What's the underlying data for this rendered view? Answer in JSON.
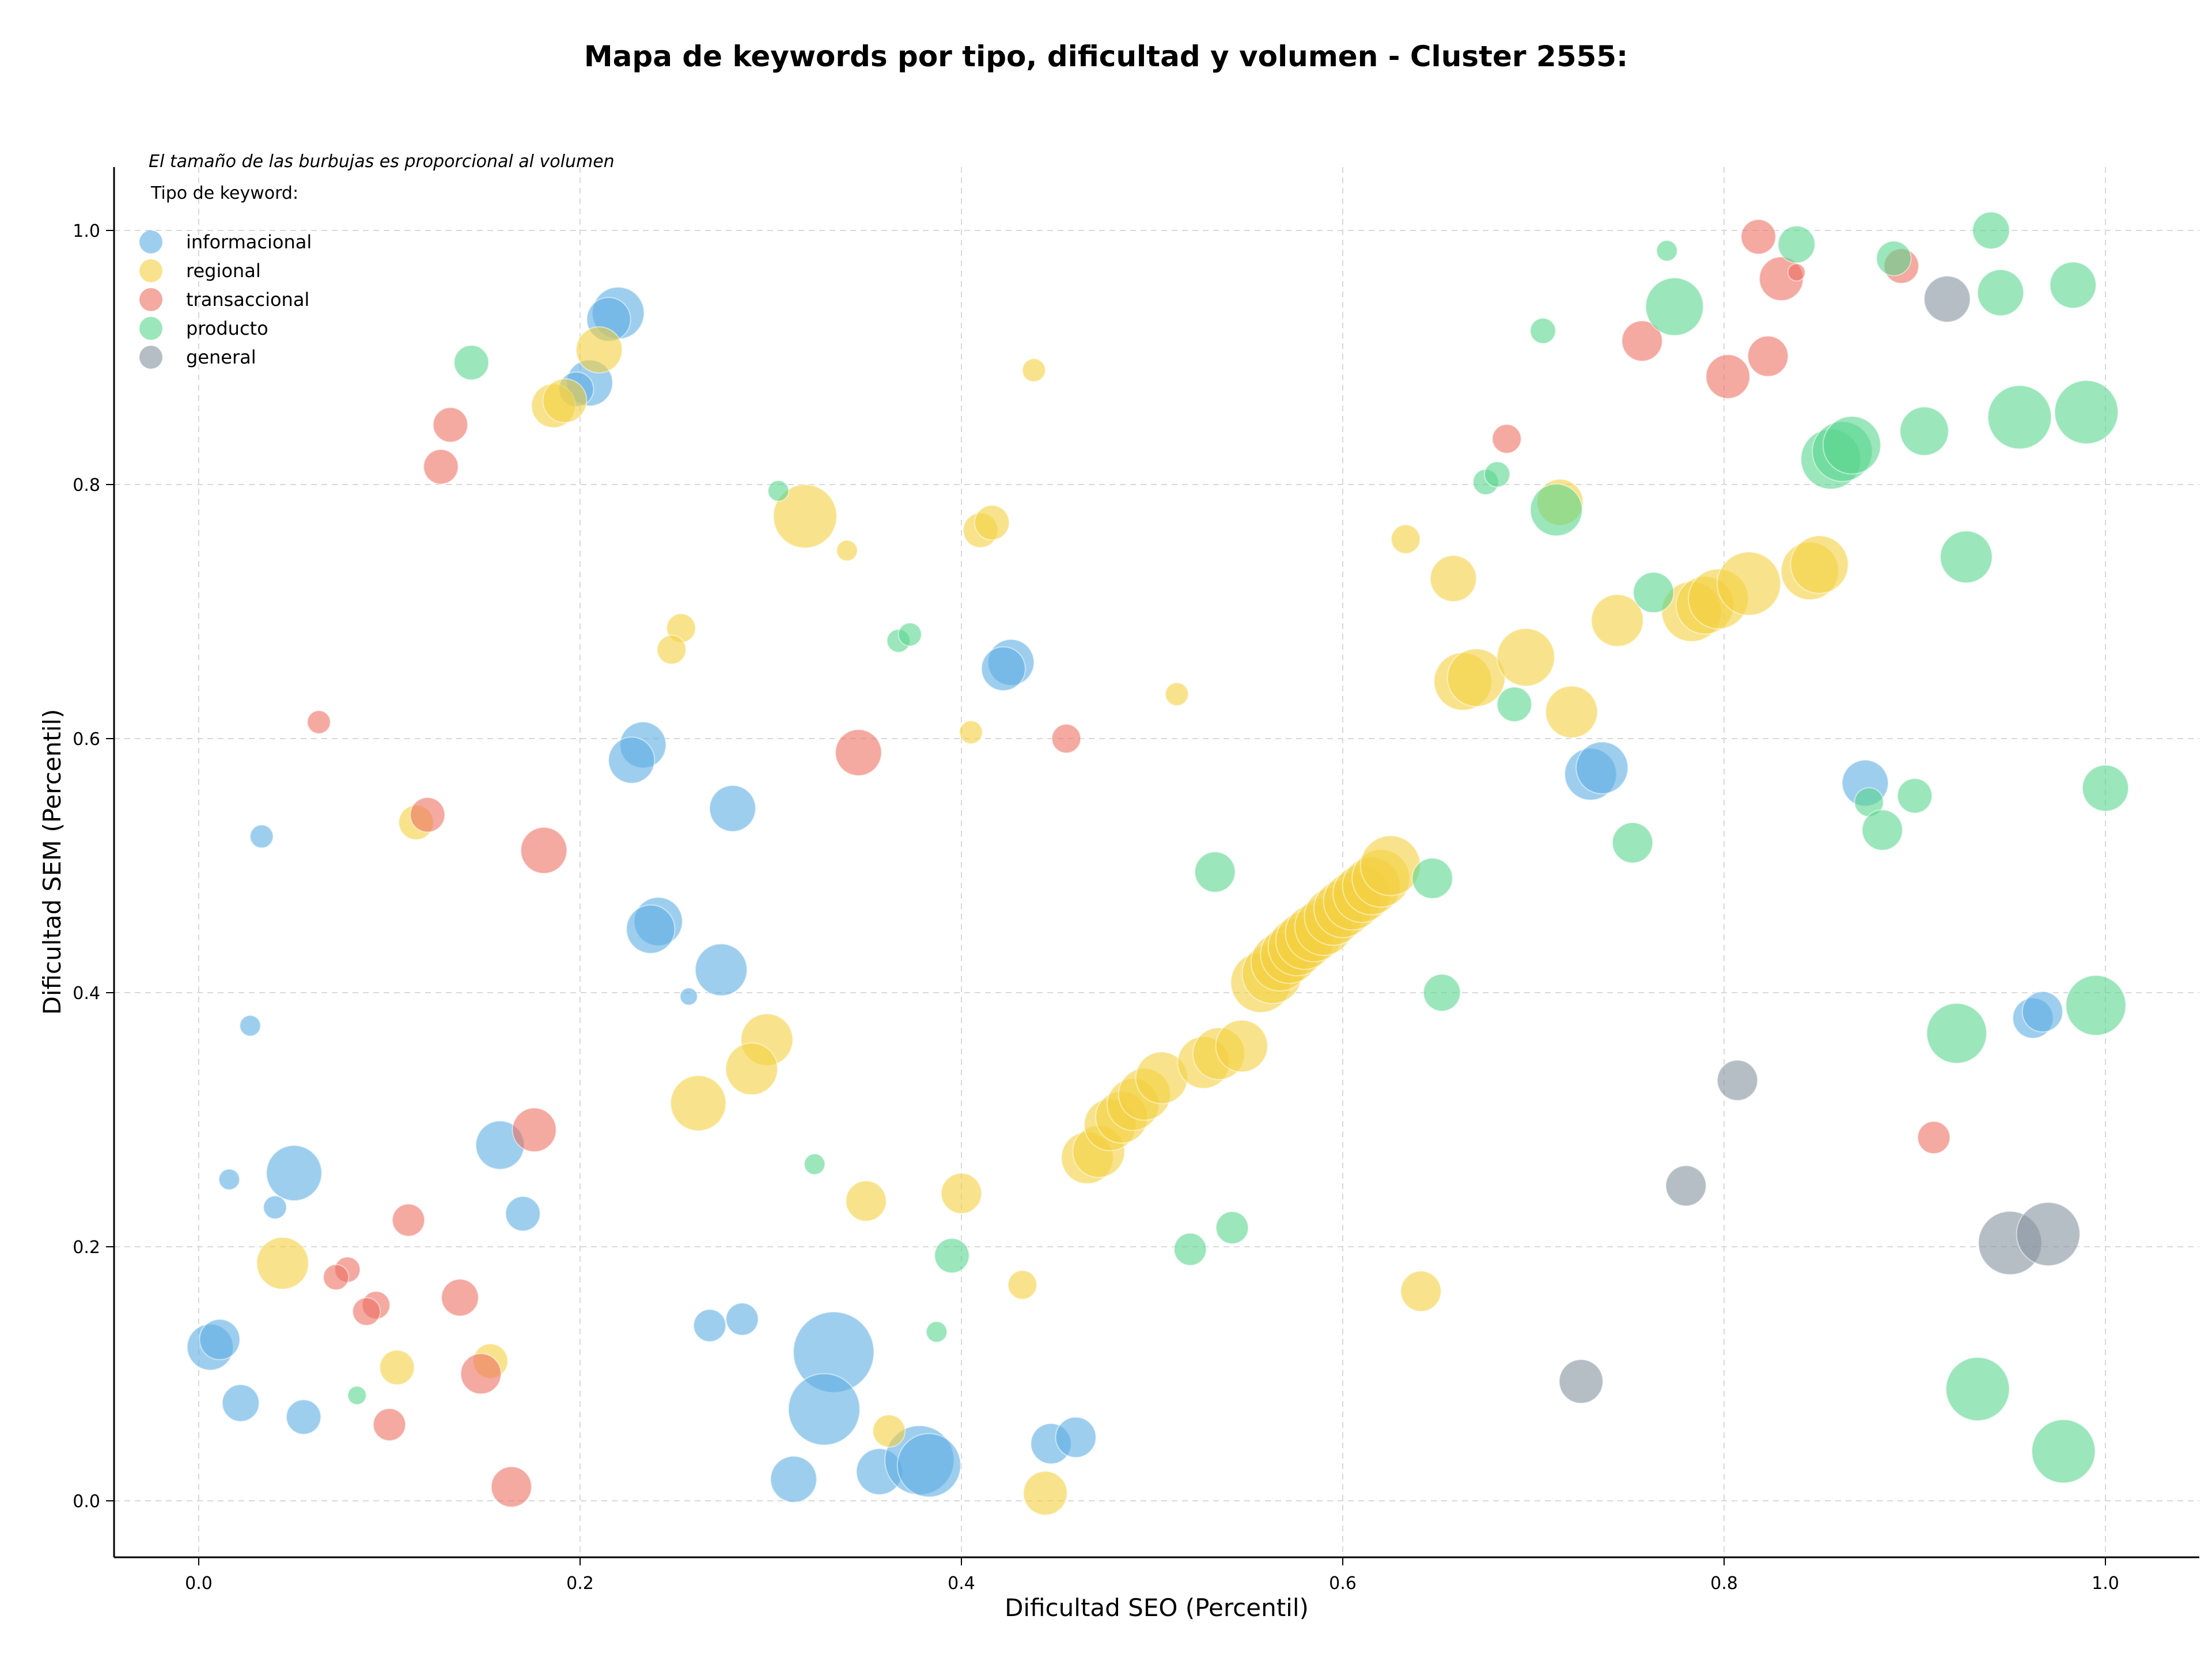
{
  "chart_data": {
    "type": "scatter",
    "title": "Mapa de keywords por tipo, dificultad y volumen - Cluster 2555:",
    "subtitle": "El tamaño de las burbujas es proporcional al volumen",
    "xlabel": "Dificultad SEO (Percentil)",
    "ylabel": "Dificultad SEM (Percentil)",
    "xlim": [
      -0.045,
      1.05
    ],
    "ylim": [
      -0.045,
      1.05
    ],
    "xticks": [
      "0.0",
      "0.2",
      "0.4",
      "0.6",
      "0.8",
      "1.0"
    ],
    "yticks": [
      "0.0",
      "0.2",
      "0.4",
      "0.6",
      "0.8",
      "1.0"
    ],
    "grid": true,
    "legend_title": "Tipo de keyword:",
    "legend_position": "top-left",
    "series": [
      {
        "name": "informacional",
        "color": "#5DADE2",
        "points": [
          [
            0.22,
            0.935,
            45
          ],
          [
            0.205,
            0.88,
            40
          ],
          [
            0.198,
            0.875,
            30
          ],
          [
            0.215,
            0.93,
            38
          ],
          [
            0.426,
            0.66,
            40
          ],
          [
            0.422,
            0.655,
            38
          ],
          [
            0.233,
            0.595,
            40
          ],
          [
            0.227,
            0.583,
            40
          ],
          [
            0.28,
            0.545,
            40
          ],
          [
            0.033,
            0.523,
            20
          ],
          [
            0.241,
            0.456,
            42
          ],
          [
            0.237,
            0.45,
            42
          ],
          [
            0.274,
            0.418,
            45
          ],
          [
            0.257,
            0.397,
            15
          ],
          [
            0.027,
            0.374,
            18
          ],
          [
            0.158,
            0.28,
            42
          ],
          [
            0.05,
            0.258,
            48
          ],
          [
            0.016,
            0.253,
            18
          ],
          [
            0.04,
            0.231,
            20
          ],
          [
            0.17,
            0.226,
            30
          ],
          [
            0.006,
            0.121,
            40
          ],
          [
            0.011,
            0.127,
            35
          ],
          [
            0.022,
            0.077,
            32
          ],
          [
            0.055,
            0.066,
            30
          ],
          [
            0.268,
            0.138,
            28
          ],
          [
            0.285,
            0.143,
            28
          ],
          [
            0.333,
            0.117,
            70
          ],
          [
            0.328,
            0.072,
            62
          ],
          [
            0.312,
            0.017,
            40
          ],
          [
            0.357,
            0.023,
            40
          ],
          [
            0.378,
            0.032,
            60
          ],
          [
            0.383,
            0.028,
            55
          ],
          [
            0.447,
            0.045,
            35
          ],
          [
            0.46,
            0.05,
            35
          ],
          [
            0.73,
            0.572,
            45
          ],
          [
            0.736,
            0.577,
            45
          ],
          [
            0.874,
            0.565,
            40
          ],
          [
            0.962,
            0.38,
            35
          ],
          [
            0.967,
            0.385,
            35
          ]
        ]
      },
      {
        "name": "regional",
        "color": "#F4D03F",
        "points": [
          [
            0.21,
            0.906,
            40
          ],
          [
            0.186,
            0.862,
            38
          ],
          [
            0.192,
            0.866,
            38
          ],
          [
            0.438,
            0.89,
            20
          ],
          [
            0.318,
            0.775,
            55
          ],
          [
            0.34,
            0.748,
            18
          ],
          [
            0.41,
            0.764,
            30
          ],
          [
            0.416,
            0.77,
            30
          ],
          [
            0.253,
            0.687,
            25
          ],
          [
            0.248,
            0.67,
            25
          ],
          [
            0.405,
            0.605,
            20
          ],
          [
            0.513,
            0.635,
            20
          ],
          [
            0.114,
            0.534,
            30
          ],
          [
            0.298,
            0.363,
            45
          ],
          [
            0.29,
            0.34,
            45
          ],
          [
            0.262,
            0.313,
            48
          ],
          [
            0.044,
            0.187,
            45
          ],
          [
            0.35,
            0.236,
            35
          ],
          [
            0.4,
            0.242,
            35
          ],
          [
            0.432,
            0.17,
            25
          ],
          [
            0.104,
            0.105,
            30
          ],
          [
            0.153,
            0.11,
            30
          ],
          [
            0.362,
            0.055,
            28
          ],
          [
            0.444,
            0.006,
            38
          ],
          [
            0.633,
            0.757,
            25
          ],
          [
            0.658,
            0.726,
            40
          ],
          [
            0.663,
            0.645,
            50
          ],
          [
            0.67,
            0.648,
            50
          ],
          [
            0.696,
            0.664,
            50
          ],
          [
            0.714,
            0.786,
            40
          ],
          [
            0.72,
            0.621,
            45
          ],
          [
            0.744,
            0.693,
            45
          ],
          [
            0.783,
            0.7,
            52
          ],
          [
            0.79,
            0.705,
            50
          ],
          [
            0.797,
            0.71,
            52
          ],
          [
            0.813,
            0.722,
            55
          ],
          [
            0.845,
            0.732,
            50
          ],
          [
            0.85,
            0.737,
            50
          ],
          [
            0.641,
            0.165,
            35
          ],
          [
            0.466,
            0.27,
            45
          ],
          [
            0.472,
            0.275,
            45
          ],
          [
            0.478,
            0.296,
            45
          ],
          [
            0.484,
            0.302,
            45
          ],
          [
            0.49,
            0.312,
            45
          ],
          [
            0.496,
            0.32,
            45
          ],
          [
            0.505,
            0.333,
            45
          ],
          [
            0.527,
            0.345,
            45
          ],
          [
            0.535,
            0.352,
            45
          ],
          [
            0.547,
            0.358,
            45
          ],
          [
            0.557,
            0.408,
            52
          ],
          [
            0.563,
            0.415,
            52
          ],
          [
            0.567,
            0.424,
            50
          ],
          [
            0.572,
            0.43,
            50
          ],
          [
            0.576,
            0.436,
            50
          ],
          [
            0.58,
            0.441,
            50
          ],
          [
            0.585,
            0.447,
            50
          ],
          [
            0.59,
            0.452,
            50
          ],
          [
            0.595,
            0.46,
            50
          ],
          [
            0.6,
            0.466,
            50
          ],
          [
            0.605,
            0.472,
            50
          ],
          [
            0.61,
            0.478,
            50
          ],
          [
            0.615,
            0.484,
            50
          ],
          [
            0.62,
            0.49,
            50
          ],
          [
            0.625,
            0.5,
            52
          ]
        ]
      },
      {
        "name": "transaccional",
        "color": "#EC7063",
        "points": [
          [
            0.132,
            0.847,
            30
          ],
          [
            0.127,
            0.814,
            30
          ],
          [
            0.063,
            0.613,
            20
          ],
          [
            0.346,
            0.589,
            40
          ],
          [
            0.455,
            0.6,
            25
          ],
          [
            0.12,
            0.54,
            30
          ],
          [
            0.181,
            0.512,
            40
          ],
          [
            0.176,
            0.292,
            38
          ],
          [
            0.11,
            0.221,
            28
          ],
          [
            0.137,
            0.16,
            32
          ],
          [
            0.078,
            0.182,
            22
          ],
          [
            0.072,
            0.176,
            22
          ],
          [
            0.093,
            0.154,
            24
          ],
          [
            0.088,
            0.149,
            24
          ],
          [
            0.148,
            0.1,
            35
          ],
          [
            0.1,
            0.06,
            28
          ],
          [
            0.164,
            0.011,
            35
          ],
          [
            0.686,
            0.836,
            25
          ],
          [
            0.757,
            0.913,
            35
          ],
          [
            0.802,
            0.885,
            38
          ],
          [
            0.818,
            0.995,
            30
          ],
          [
            0.823,
            0.901,
            35
          ],
          [
            0.83,
            0.962,
            38
          ],
          [
            0.838,
            0.967,
            15
          ],
          [
            0.893,
            0.972,
            30
          ],
          [
            0.91,
            0.286,
            28
          ]
        ]
      },
      {
        "name": "producto",
        "color": "#58D68D",
        "points": [
          [
            0.143,
            0.896,
            30
          ],
          [
            0.304,
            0.795,
            18
          ],
          [
            0.367,
            0.677,
            20
          ],
          [
            0.373,
            0.682,
            20
          ],
          [
            0.323,
            0.265,
            18
          ],
          [
            0.395,
            0.193,
            30
          ],
          [
            0.387,
            0.133,
            18
          ],
          [
            0.083,
            0.083,
            16
          ],
          [
            0.533,
            0.495,
            35
          ],
          [
            0.52,
            0.198,
            28
          ],
          [
            0.542,
            0.215,
            28
          ],
          [
            0.705,
            0.921,
            22
          ],
          [
            0.77,
            0.984,
            18
          ],
          [
            0.774,
            0.94,
            50
          ],
          [
            0.675,
            0.802,
            22
          ],
          [
            0.681,
            0.808,
            22
          ],
          [
            0.712,
            0.78,
            45
          ],
          [
            0.763,
            0.715,
            35
          ],
          [
            0.69,
            0.627,
            30
          ],
          [
            0.752,
            0.518,
            35
          ],
          [
            0.647,
            0.49,
            35
          ],
          [
            0.652,
            0.4,
            32
          ],
          [
            0.838,
            0.989,
            32
          ],
          [
            0.889,
            0.978,
            30
          ],
          [
            0.94,
            1.0,
            32
          ],
          [
            0.945,
            0.951,
            40
          ],
          [
            0.983,
            0.957,
            40
          ],
          [
            0.856,
            0.82,
            52
          ],
          [
            0.862,
            0.826,
            52
          ],
          [
            0.867,
            0.831,
            50
          ],
          [
            0.905,
            0.842,
            42
          ],
          [
            0.955,
            0.853,
            55
          ],
          [
            0.99,
            0.857,
            55
          ],
          [
            0.927,
            0.743,
            45
          ],
          [
            0.876,
            0.55,
            25
          ],
          [
            0.883,
            0.528,
            35
          ],
          [
            0.9,
            0.555,
            30
          ],
          [
            0.922,
            0.368,
            52
          ],
          [
            0.995,
            0.39,
            52
          ],
          [
            1.0,
            0.561,
            40
          ],
          [
            0.933,
            0.088,
            55
          ],
          [
            0.978,
            0.039,
            55
          ]
        ]
      },
      {
        "name": "general",
        "color": "#85929E",
        "points": [
          [
            0.917,
            0.946,
            40
          ],
          [
            0.807,
            0.331,
            35
          ],
          [
            0.78,
            0.248,
            35
          ],
          [
            0.95,
            0.203,
            55
          ],
          [
            0.97,
            0.21,
            55
          ],
          [
            0.725,
            0.094,
            38
          ]
        ]
      }
    ]
  }
}
